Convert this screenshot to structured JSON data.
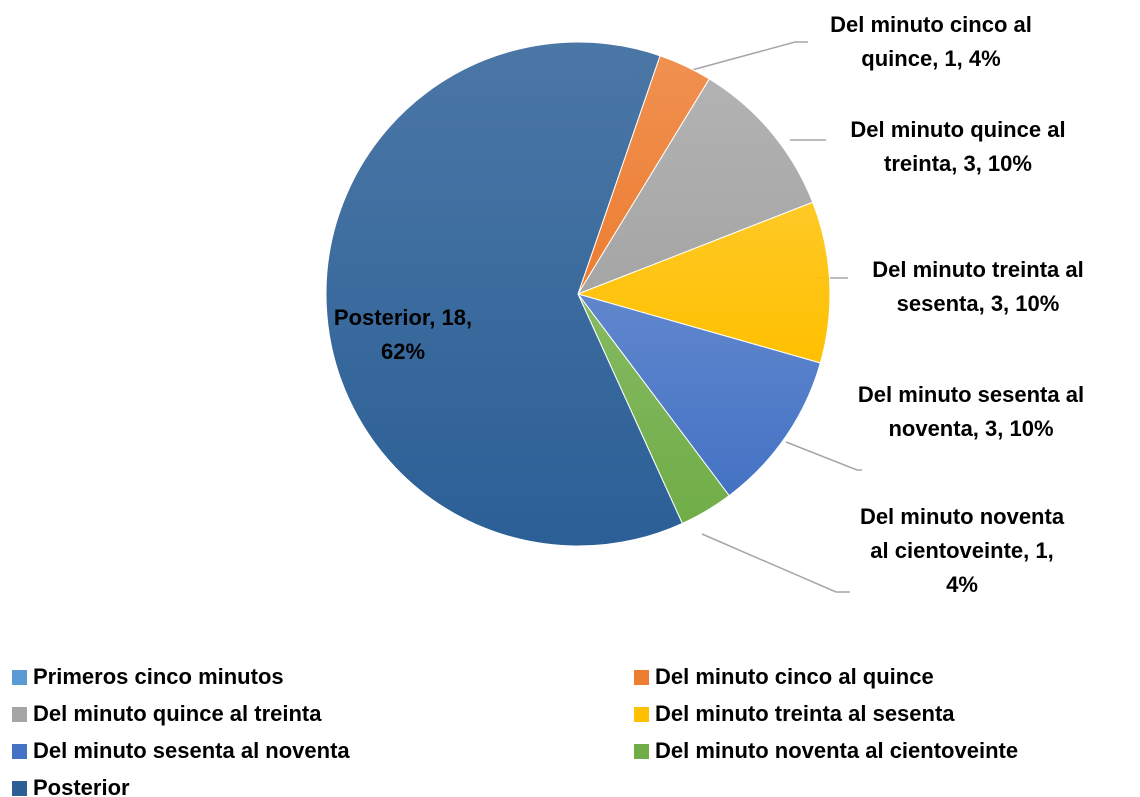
{
  "chart_data": {
    "type": "pie",
    "categories": [
      "Primeros cinco minutos",
      "Del minuto cinco al quince",
      "Del minuto quince al treinta",
      "Del minuto treinta al sesenta",
      "Del minuto sesenta al noventa",
      "Del minuto noventa al cientoveinte",
      "Posterior"
    ],
    "values": [
      0,
      1,
      3,
      3,
      3,
      1,
      18
    ],
    "value_labels": [
      null,
      "Del minuto cinco al quince, 1, 4%",
      "Del minuto quince al treinta, 3, 10%",
      "Del minuto treinta al sesenta, 3, 10%",
      "Del minuto sesenta al noventa, 3, 10%",
      "Del minuto noventa al cientoveinte, 1, 4%",
      "Posterior, 18, 62%"
    ],
    "colors": [
      "#5b9bd5",
      "#ed7d31",
      "#a5a5a5",
      "#ffc000",
      "#4472c4",
      "#70ad47",
      "#2b5f96"
    ],
    "start_angle": 19,
    "legend": "bottom"
  }
}
